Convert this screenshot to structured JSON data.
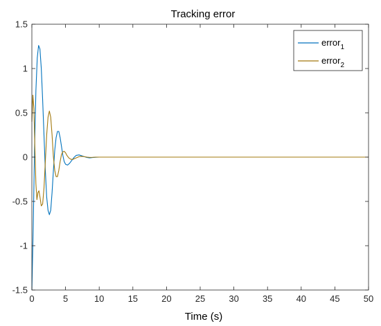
{
  "chart_data": {
    "type": "line",
    "title": "Tracking error",
    "xlabel": "Time (s)",
    "ylabel": "",
    "xlim": [
      0,
      50
    ],
    "ylim": [
      -1.5,
      1.5
    ],
    "xticks": [
      0,
      5,
      10,
      15,
      20,
      25,
      30,
      35,
      40,
      45,
      50
    ],
    "yticks": [
      -1.5,
      -1,
      -0.5,
      0,
      0.5,
      1,
      1.5
    ],
    "xtick_labels": [
      "0",
      "5",
      "10",
      "15",
      "20",
      "25",
      "30",
      "35",
      "40",
      "45",
      "50"
    ],
    "ytick_labels": [
      "-1.5",
      "-1",
      "-0.5",
      "0",
      "0.5",
      "1",
      "1.5"
    ],
    "grid": false,
    "legend_position": "top-right",
    "series": [
      {
        "name": "error",
        "subscript": "1",
        "color": "#0072BD",
        "x": [
          0,
          0.2,
          0.4,
          0.6,
          0.8,
          1.0,
          1.2,
          1.4,
          1.6,
          1.8,
          2.0,
          2.2,
          2.4,
          2.6,
          2.8,
          3.0,
          3.2,
          3.4,
          3.6,
          3.8,
          4.0,
          4.2,
          4.4,
          4.6,
          4.8,
          5.0,
          5.3,
          5.6,
          6.0,
          6.3,
          6.6,
          7.0,
          7.4,
          7.8,
          8.2,
          8.6,
          9.0,
          9.5,
          10,
          11,
          12,
          15,
          20,
          30,
          40,
          50
        ],
        "y": [
          -1.5,
          -0.8,
          0.1,
          0.75,
          1.12,
          1.26,
          1.22,
          1.0,
          0.65,
          0.25,
          -0.15,
          -0.45,
          -0.6,
          -0.65,
          -0.6,
          -0.4,
          -0.15,
          0.08,
          0.22,
          0.29,
          0.29,
          0.22,
          0.12,
          0.02,
          -0.05,
          -0.08,
          -0.09,
          -0.07,
          -0.03,
          0.0,
          0.02,
          0.025,
          0.015,
          0.005,
          -0.005,
          -0.008,
          -0.005,
          -0.002,
          0.0,
          0,
          0,
          0,
          0,
          0,
          0,
          0
        ]
      },
      {
        "name": "error",
        "subscript": "2",
        "color": "#A2780D",
        "x": [
          0,
          0.15,
          0.3,
          0.45,
          0.6,
          0.75,
          0.9,
          1.05,
          1.2,
          1.4,
          1.6,
          1.8,
          2.0,
          2.2,
          2.4,
          2.6,
          2.8,
          3.0,
          3.2,
          3.4,
          3.6,
          3.8,
          4.0,
          4.2,
          4.4,
          4.6,
          4.8,
          5.0,
          5.2,
          5.5,
          5.8,
          6.1,
          6.4,
          6.7,
          7.0,
          7.4,
          7.8,
          8.2,
          8.6,
          9.0,
          9.5,
          10,
          11,
          12,
          15,
          20,
          30,
          40,
          50
        ],
        "y": [
          0.4,
          0.7,
          0.55,
          0.1,
          -0.3,
          -0.48,
          -0.4,
          -0.38,
          -0.45,
          -0.55,
          -0.53,
          -0.35,
          -0.05,
          0.25,
          0.45,
          0.52,
          0.45,
          0.25,
          0.0,
          -0.15,
          -0.22,
          -0.22,
          -0.15,
          -0.05,
          0.03,
          0.06,
          0.065,
          0.05,
          0.02,
          -0.01,
          -0.025,
          -0.025,
          -0.015,
          -0.005,
          0.005,
          0.008,
          0.005,
          0.0,
          -0.003,
          -0.002,
          0.0,
          0.0,
          0,
          0,
          0,
          0,
          0,
          0,
          0
        ]
      }
    ]
  },
  "colors": {
    "axis": "#262626",
    "zero_line": "#A2780D"
  }
}
